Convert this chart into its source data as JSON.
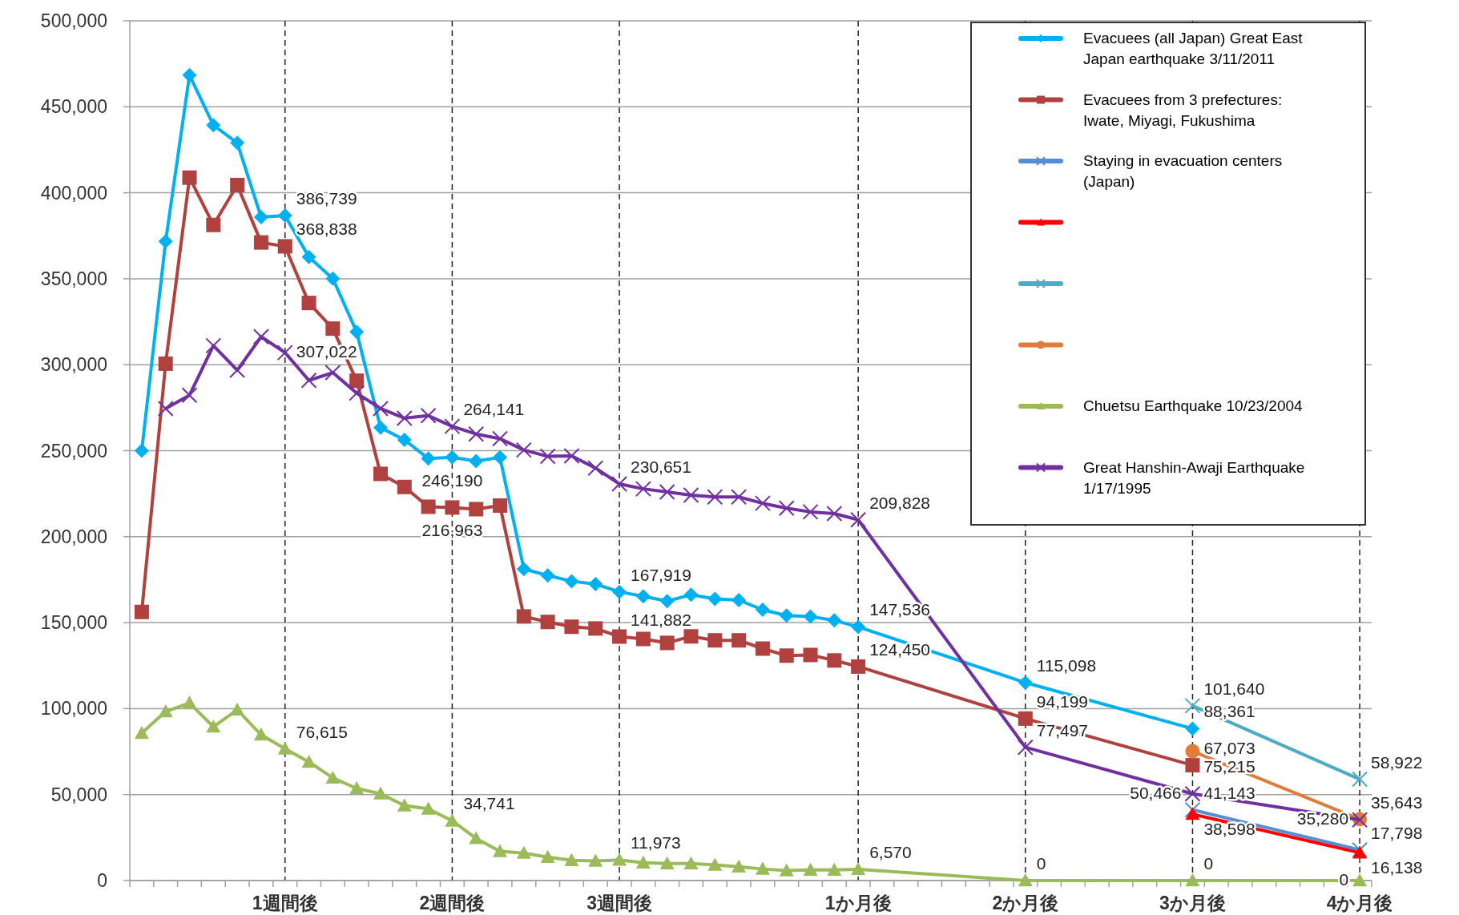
{
  "chart_data": {
    "type": "line",
    "categories": [
      null,
      null,
      null,
      null,
      null,
      null,
      "1週間後",
      null,
      null,
      null,
      null,
      null,
      null,
      "2週間後",
      null,
      null,
      null,
      null,
      null,
      null,
      "3週間後",
      null,
      null,
      null,
      null,
      null,
      null,
      null,
      null,
      null,
      "1か月後",
      null,
      null,
      null,
      null,
      null,
      null,
      "2か月後",
      null,
      null,
      null,
      null,
      null,
      null,
      "3か月後",
      null,
      null,
      null,
      null,
      null,
      null,
      "4か月後"
    ],
    "ylim": [
      0,
      500000
    ],
    "yticks": [
      {
        "value": 0,
        "label": "0"
      },
      {
        "value": 50000,
        "label": "50,000"
      },
      {
        "value": 100000,
        "label": "100,000"
      },
      {
        "value": 150000,
        "label": "150,000"
      },
      {
        "value": 200000,
        "label": "200,000"
      },
      {
        "value": 250000,
        "label": "250,000"
      },
      {
        "value": 300000,
        "label": "300,000"
      },
      {
        "value": 350000,
        "label": "350,000"
      },
      {
        "value": 400000,
        "label": "400,000"
      },
      {
        "value": 450000,
        "label": "450,000"
      },
      {
        "value": 500000,
        "label": "500,000"
      }
    ],
    "grid": true,
    "legend": "top right",
    "series": [
      {
        "name": "Evacuees (all Japan) Great East Japan earthquake 3/11/2011",
        "color": "#00b0f0",
        "marker": "diamond",
        "values": [
          250000,
          371700,
          468400,
          439300,
          429000,
          385800,
          386739,
          362700,
          350100,
          319100,
          263400,
          256300,
          245400,
          246190,
          243900,
          246100,
          181200,
          177400,
          174100,
          172400,
          167919,
          165300,
          162500,
          166200,
          163800,
          163100,
          157500,
          154100,
          153500,
          151300,
          147536,
          null,
          null,
          null,
          null,
          null,
          null,
          115098,
          null,
          null,
          null,
          null,
          null,
          null,
          88361,
          null,
          null,
          null,
          null,
          null,
          null,
          null
        ],
        "value_labels": [
          null,
          null,
          null,
          null,
          null,
          null,
          "386,739",
          null,
          null,
          null,
          null,
          null,
          null,
          "246,190",
          null,
          null,
          null,
          null,
          null,
          null,
          "167,919",
          null,
          null,
          null,
          null,
          null,
          null,
          null,
          null,
          null,
          "147,536",
          null,
          null,
          null,
          null,
          null,
          null,
          "115,098",
          null,
          null,
          null,
          null,
          null,
          null,
          "88,361",
          null,
          null,
          null,
          null,
          null,
          null,
          null
        ]
      },
      {
        "name": "Evacuees from 3 prefectures: Iwate, Miyagi, Fukushima",
        "color": "#b0413e",
        "marker": "square",
        "values": [
          156200,
          300600,
          408800,
          381300,
          404500,
          371100,
          368838,
          335900,
          321000,
          290700,
          236500,
          228900,
          217400,
          216963,
          216000,
          218100,
          153600,
          150400,
          147600,
          146600,
          141882,
          140500,
          138200,
          142000,
          139700,
          139700,
          134900,
          130800,
          131200,
          128000,
          124450,
          null,
          null,
          null,
          null,
          null,
          null,
          94199,
          null,
          null,
          null,
          null,
          null,
          null,
          67073,
          null,
          null,
          null,
          null,
          null,
          null,
          null
        ],
        "value_labels": [
          null,
          null,
          null,
          null,
          null,
          null,
          "368,838",
          null,
          null,
          null,
          null,
          null,
          null,
          "216,963",
          null,
          null,
          null,
          null,
          null,
          null,
          "141,882",
          null,
          null,
          null,
          null,
          null,
          null,
          null,
          null,
          null,
          "124,450",
          null,
          null,
          null,
          null,
          null,
          null,
          "94,199",
          null,
          null,
          null,
          null,
          null,
          null,
          "67,073",
          null,
          null,
          null,
          null,
          null,
          null,
          null
        ]
      },
      {
        "name": "Staying in evacuation centers (Japan)",
        "color": "#558ed5",
        "marker": "cross",
        "values": [
          null,
          null,
          null,
          null,
          null,
          null,
          null,
          null,
          null,
          null,
          null,
          null,
          null,
          null,
          null,
          null,
          null,
          null,
          null,
          null,
          null,
          null,
          null,
          null,
          null,
          null,
          null,
          null,
          null,
          null,
          null,
          null,
          null,
          null,
          null,
          null,
          null,
          null,
          null,
          null,
          null,
          null,
          null,
          null,
          41143,
          null,
          null,
          null,
          null,
          null,
          null,
          17798
        ],
        "value_labels": [
          null,
          null,
          null,
          null,
          null,
          null,
          null,
          null,
          null,
          null,
          null,
          null,
          null,
          null,
          null,
          null,
          null,
          null,
          null,
          null,
          null,
          null,
          null,
          null,
          null,
          null,
          null,
          null,
          null,
          null,
          null,
          null,
          null,
          null,
          null,
          null,
          null,
          null,
          null,
          null,
          null,
          null,
          null,
          null,
          "41,143",
          null,
          null,
          null,
          null,
          null,
          null,
          "17,798"
        ]
      },
      {
        "color": "#ff0000",
        "marker": "triangle",
        "values": [
          null,
          null,
          null,
          null,
          null,
          null,
          null,
          null,
          null,
          null,
          null,
          null,
          null,
          null,
          null,
          null,
          null,
          null,
          null,
          null,
          null,
          null,
          null,
          null,
          null,
          null,
          null,
          null,
          null,
          null,
          null,
          null,
          null,
          null,
          null,
          null,
          null,
          null,
          null,
          null,
          null,
          null,
          null,
          null,
          38598,
          null,
          null,
          null,
          null,
          null,
          null,
          16138
        ],
        "value_labels": [
          null,
          null,
          null,
          null,
          null,
          null,
          null,
          null,
          null,
          null,
          null,
          null,
          null,
          null,
          null,
          null,
          null,
          null,
          null,
          null,
          null,
          null,
          null,
          null,
          null,
          null,
          null,
          null,
          null,
          null,
          null,
          null,
          null,
          null,
          null,
          null,
          null,
          null,
          null,
          null,
          null,
          null,
          null,
          null,
          "38,598",
          null,
          null,
          null,
          null,
          null,
          null,
          "16,138"
        ]
      },
      {
        "color": "#4bacc6",
        "marker": "cross",
        "values": [
          null,
          null,
          null,
          null,
          null,
          null,
          null,
          null,
          null,
          null,
          null,
          null,
          null,
          null,
          null,
          null,
          null,
          null,
          null,
          null,
          null,
          null,
          null,
          null,
          null,
          null,
          null,
          null,
          null,
          null,
          null,
          null,
          null,
          null,
          null,
          null,
          null,
          null,
          null,
          null,
          null,
          null,
          null,
          null,
          101640,
          null,
          null,
          null,
          null,
          null,
          null,
          58922
        ],
        "value_labels": [
          null,
          null,
          null,
          null,
          null,
          null,
          null,
          null,
          null,
          null,
          null,
          null,
          null,
          null,
          null,
          null,
          null,
          null,
          null,
          null,
          null,
          null,
          null,
          null,
          null,
          null,
          null,
          null,
          null,
          null,
          null,
          null,
          null,
          null,
          null,
          null,
          null,
          null,
          null,
          null,
          null,
          null,
          null,
          null,
          "101,640",
          null,
          null,
          null,
          null,
          null,
          null,
          "58,922"
        ]
      },
      {
        "color": "#e07b39",
        "marker": "circle",
        "values": [
          null,
          null,
          null,
          null,
          null,
          null,
          null,
          null,
          null,
          null,
          null,
          null,
          null,
          null,
          null,
          null,
          null,
          null,
          null,
          null,
          null,
          null,
          null,
          null,
          null,
          null,
          null,
          null,
          null,
          null,
          null,
          null,
          null,
          null,
          null,
          null,
          null,
          null,
          null,
          null,
          null,
          null,
          null,
          null,
          75215,
          null,
          null,
          null,
          null,
          null,
          null,
          35643
        ],
        "value_labels": [
          null,
          null,
          null,
          null,
          null,
          null,
          null,
          null,
          null,
          null,
          null,
          null,
          null,
          null,
          null,
          null,
          null,
          null,
          null,
          null,
          null,
          null,
          null,
          null,
          null,
          null,
          null,
          null,
          null,
          null,
          null,
          null,
          null,
          null,
          null,
          null,
          null,
          null,
          null,
          null,
          null,
          null,
          null,
          null,
          "75,215",
          null,
          null,
          null,
          null,
          null,
          null,
          "35,643"
        ]
      },
      {
        "name": "Chuetsu Earthquake 10/23/2004",
        "color": "#9bbb59",
        "marker": "triangle",
        "values": [
          85700,
          98300,
          103300,
          89400,
          99300,
          84800,
          76615,
          69000,
          59700,
          53600,
          50500,
          43600,
          41700,
          34741,
          24500,
          17000,
          16000,
          13600,
          11800,
          11400,
          11973,
          10400,
          9900,
          9900,
          9100,
          8000,
          6700,
          5800,
          6200,
          6200,
          6570,
          null,
          null,
          null,
          null,
          null,
          null,
          0,
          null,
          null,
          null,
          null,
          null,
          null,
          0,
          null,
          null,
          null,
          null,
          null,
          null,
          0
        ],
        "value_labels": [
          null,
          null,
          null,
          null,
          null,
          null,
          "76,615",
          null,
          null,
          null,
          null,
          null,
          null,
          "34,741",
          null,
          null,
          null,
          null,
          null,
          null,
          "11,973",
          null,
          null,
          null,
          null,
          null,
          null,
          null,
          null,
          null,
          "6,570",
          null,
          null,
          null,
          null,
          null,
          null,
          "0",
          null,
          null,
          null,
          null,
          null,
          null,
          "0",
          null,
          null,
          null,
          null,
          null,
          null,
          "0"
        ]
      },
      {
        "name": "Great Hanshin-Awaji Earthquake 1/17/1995",
        "color": "#7030a0",
        "marker": "cross",
        "values": [
          null,
          274500,
          282300,
          311100,
          296800,
          316300,
          307022,
          290900,
          295400,
          283500,
          274500,
          268900,
          270400,
          264141,
          259700,
          257000,
          250400,
          246700,
          247000,
          239900,
          230651,
          227800,
          226000,
          224100,
          223100,
          223100,
          219400,
          216600,
          214400,
          213400,
          209828,
          null,
          null,
          null,
          null,
          null,
          null,
          77497,
          null,
          null,
          null,
          null,
          null,
          null,
          50466,
          null,
          null,
          null,
          null,
          null,
          null,
          35280
        ],
        "value_labels": [
          null,
          null,
          null,
          null,
          null,
          null,
          "307,022",
          null,
          null,
          null,
          null,
          null,
          null,
          "264,141",
          null,
          null,
          null,
          null,
          null,
          null,
          "230,651",
          null,
          null,
          null,
          null,
          null,
          null,
          null,
          null,
          null,
          "209,828",
          null,
          null,
          null,
          null,
          null,
          null,
          "77,497",
          null,
          null,
          null,
          null,
          null,
          null,
          "50,466",
          null,
          null,
          null,
          null,
          null,
          null,
          "35,280"
        ]
      }
    ]
  }
}
